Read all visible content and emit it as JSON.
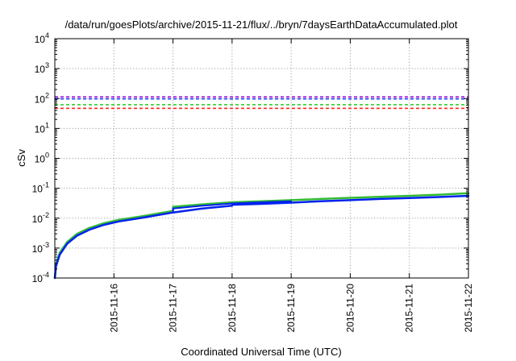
{
  "chart_data": {
    "type": "line",
    "title": "/data/run/goesPlots/archive/2015-11-21/flux/../bryn/7daysEarthDataAccumulated.plot",
    "xlabel": "Coordinated Universal Time (UTC)",
    "ylabel": "cSv",
    "x_scale": "time",
    "y_scale": "log",
    "xlim": [
      "2015-11-15",
      "2015-11-22"
    ],
    "ylim": [
      0.0001,
      10000
    ],
    "grid": true,
    "x_ticks": [
      "2015-11-16",
      "2015-11-17",
      "2015-11-18",
      "2015-11-19",
      "2015-11-20",
      "2015-11-21",
      "2015-11-22"
    ],
    "y_ticks": [
      {
        "value": 0.0001,
        "base": "10",
        "exp": "-4"
      },
      {
        "value": 0.001,
        "base": "10",
        "exp": "-3"
      },
      {
        "value": 0.01,
        "base": "10",
        "exp": "-2"
      },
      {
        "value": 0.1,
        "base": "10",
        "exp": "-1"
      },
      {
        "value": 1,
        "base": "10",
        "exp": "0"
      },
      {
        "value": 10,
        "base": "10",
        "exp": "1"
      },
      {
        "value": 100,
        "base": "10",
        "exp": "2"
      },
      {
        "value": 1000,
        "base": "10",
        "exp": "3"
      },
      {
        "value": 10000,
        "base": "10",
        "exp": "4"
      }
    ],
    "thresholds": [
      {
        "value": 113,
        "color": "#9400d3"
      },
      {
        "value": 97,
        "color": "#1e3cff"
      },
      {
        "value": 62,
        "color": "#33cc33"
      },
      {
        "value": 47,
        "color": "#ff2222"
      }
    ],
    "series": [
      {
        "color": "#33bb33",
        "width": 2.5,
        "points": [
          [
            "2015-11-15T00:00",
            0.0001
          ],
          [
            "2015-11-15T00:30",
            0.0003
          ],
          [
            "2015-11-15T02:00",
            0.0007
          ],
          [
            "2015-11-15T05:00",
            0.0016
          ],
          [
            "2015-11-15T09:00",
            0.003
          ],
          [
            "2015-11-15T14:00",
            0.0047
          ],
          [
            "2015-11-15T20:00",
            0.0068
          ],
          [
            "2015-11-16T02:00",
            0.0088
          ],
          [
            "2015-11-16T12:00",
            0.0118
          ],
          [
            "2015-11-17T00:00",
            0.0175
          ],
          [
            "2015-11-17T00:01",
            0.024
          ],
          [
            "2015-11-17T12:00",
            0.029
          ],
          [
            "2015-11-18T00:00",
            0.034
          ],
          [
            "2015-11-18T12:00",
            0.037
          ],
          [
            "2015-11-19T00:00",
            0.04
          ],
          [
            "2015-11-19T12:00",
            0.044
          ],
          [
            "2015-11-20T00:00",
            0.048
          ],
          [
            "2015-11-20T12:00",
            0.052
          ],
          [
            "2015-11-21T00:00",
            0.056
          ],
          [
            "2015-11-21T12:00",
            0.061
          ],
          [
            "2015-11-22T00:00",
            0.068
          ]
        ]
      },
      {
        "color": "#0022ee",
        "width": 2.5,
        "points": [
          [
            "2015-11-15T00:00",
            0.0001
          ],
          [
            "2015-11-15T00:30",
            0.00025
          ],
          [
            "2015-11-15T02:00",
            0.0006
          ],
          [
            "2015-11-15T05:00",
            0.0014
          ],
          [
            "2015-11-15T09:00",
            0.0026
          ],
          [
            "2015-11-15T14:00",
            0.0041
          ],
          [
            "2015-11-15T20:00",
            0.006
          ],
          [
            "2015-11-16T02:00",
            0.0078
          ],
          [
            "2015-11-16T12:00",
            0.0105
          ],
          [
            "2015-11-17T00:00",
            0.0155
          ],
          [
            "2015-11-17T12:00",
            0.021
          ],
          [
            "2015-11-18T00:00",
            0.026
          ],
          [
            "2015-11-18T00:01",
            0.028
          ],
          [
            "2015-11-18T12:00",
            0.03
          ],
          [
            "2015-11-19T00:00",
            0.033
          ],
          [
            "2015-11-19T12:00",
            0.037
          ],
          [
            "2015-11-20T00:00",
            0.04
          ],
          [
            "2015-11-20T12:00",
            0.044
          ],
          [
            "2015-11-21T00:00",
            0.047
          ],
          [
            "2015-11-21T12:00",
            0.051
          ],
          [
            "2015-11-22T00:00",
            0.056
          ]
        ]
      },
      {
        "color": "#0022ee",
        "width": 2,
        "points": [
          [
            "2015-11-17T00:00",
            0.0155
          ],
          [
            "2015-11-17T00:01",
            0.021
          ],
          [
            "2015-11-17T12:00",
            0.026
          ],
          [
            "2015-11-18T00:00",
            0.031
          ],
          [
            "2015-11-18T12:00",
            0.034
          ],
          [
            "2015-11-19T00:00",
            0.037
          ]
        ]
      }
    ]
  }
}
